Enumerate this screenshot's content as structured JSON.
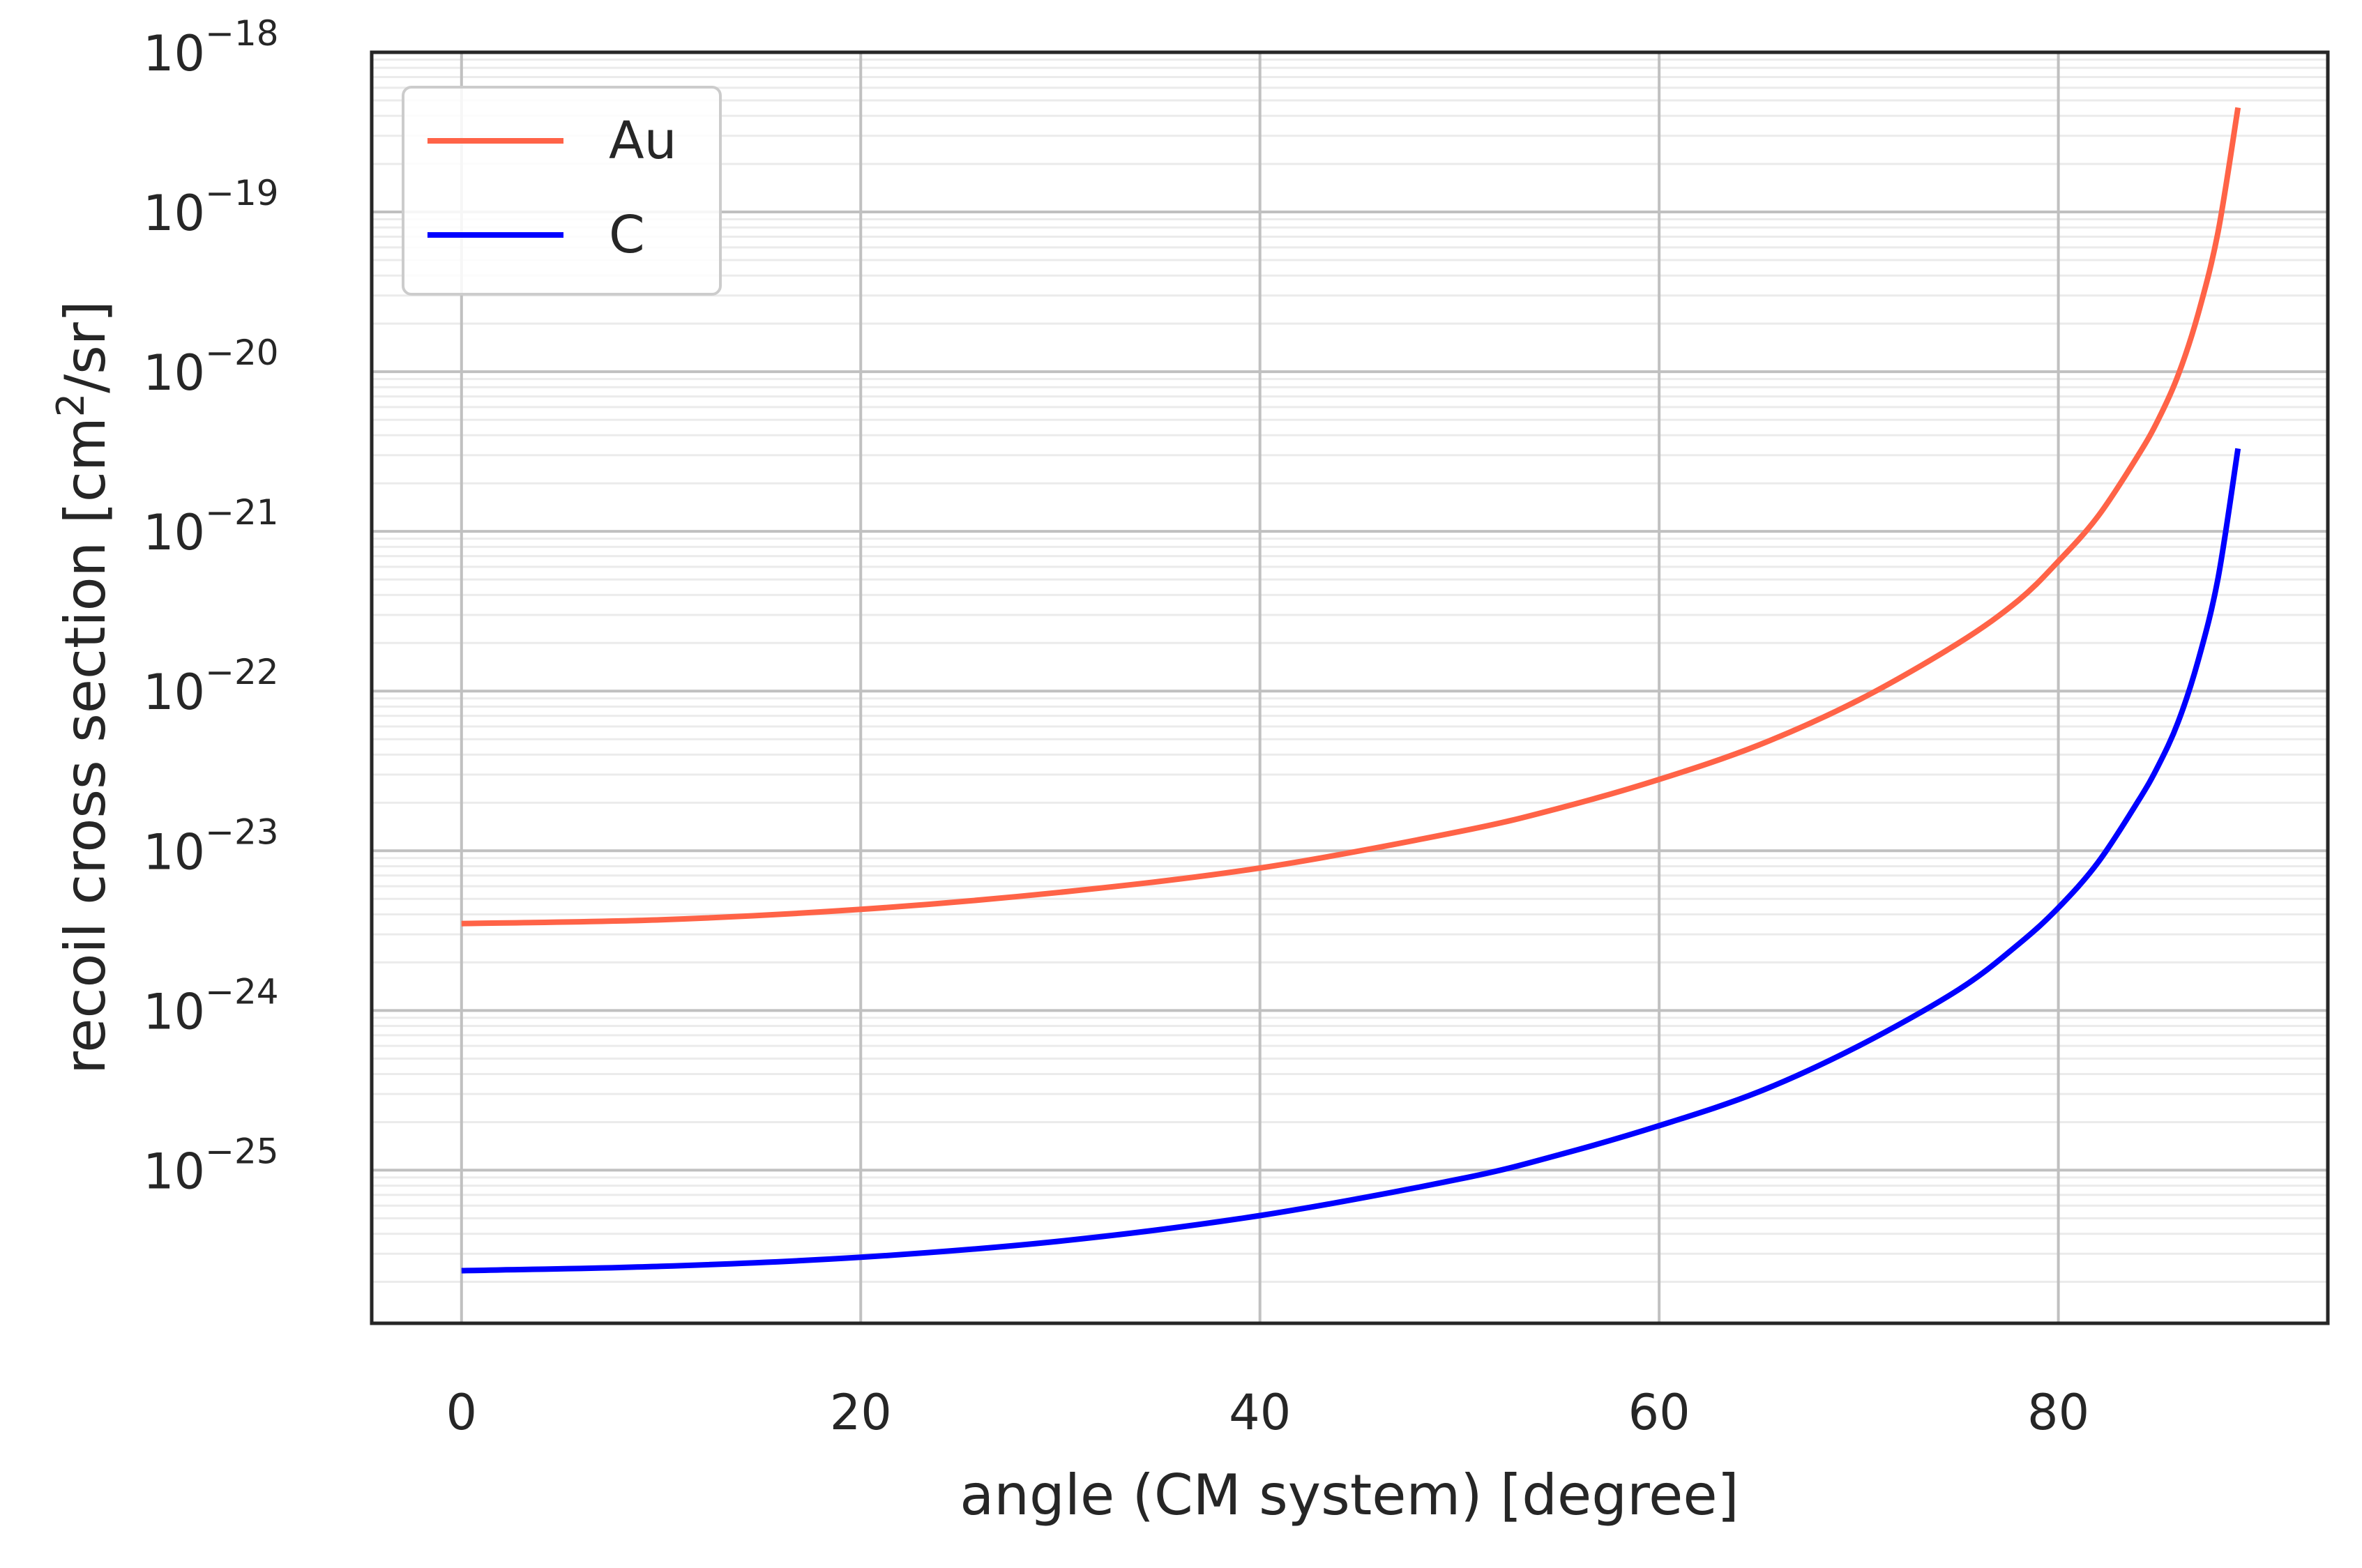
{
  "chart_data": {
    "type": "line",
    "title": "",
    "xlabel": "angle (CM system) [degree]",
    "ylabel_main": "recoil cross section [cm",
    "ylabel_sup": "2",
    "ylabel_tail": "/sr]",
    "x_scale": "linear",
    "y_scale": "log",
    "xlim": [
      -4.5,
      93.5
    ],
    "ylim": [
      1.1e-26,
      1e-18
    ],
    "x_ticks": [
      0,
      20,
      40,
      60,
      80
    ],
    "x_tick_labels": [
      "0",
      "20",
      "40",
      "60",
      "80"
    ],
    "y_ticks": [
      {
        "value": 1e-18,
        "base": "10",
        "exp": "−18"
      },
      {
        "value": 1e-19,
        "base": "10",
        "exp": "−19"
      },
      {
        "value": 1e-20,
        "base": "10",
        "exp": "−20"
      },
      {
        "value": 1e-21,
        "base": "10",
        "exp": "−21"
      },
      {
        "value": 1e-22,
        "base": "10",
        "exp": "−22"
      },
      {
        "value": 1e-23,
        "base": "10",
        "exp": "−23"
      },
      {
        "value": 1e-24,
        "base": "10",
        "exp": "−24"
      },
      {
        "value": 1e-25,
        "base": "10",
        "exp": "−25"
      }
    ],
    "grid": true,
    "minor_grid": true,
    "legend_position": "upper-left",
    "series": [
      {
        "name": "Au",
        "color": "#ff6347",
        "x": [
          0,
          10,
          20,
          30,
          40,
          50,
          55,
          60,
          65,
          70,
          75,
          78,
          80,
          82,
          84,
          85,
          86,
          87,
          88,
          89
        ],
        "y": [
          3.5e-24,
          3.7e-24,
          4.3e-24,
          5.5e-24,
          7.8e-24,
          1.32e-23,
          1.85e-23,
          2.8e-23,
          4.6e-23,
          8.8e-23,
          2e-22,
          3.7e-22,
          6.5e-22,
          1.25e-21,
          3e-21,
          5e-21,
          9.5e-21,
          2.3e-20,
          7.5e-20,
          4.5e-19
        ]
      },
      {
        "name": "C",
        "color": "#0000ff",
        "x": [
          0,
          10,
          20,
          30,
          40,
          50,
          55,
          60,
          65,
          70,
          75,
          78,
          80,
          82,
          84,
          85,
          86,
          87,
          88,
          89
        ],
        "y": [
          2.35e-26,
          2.5e-26,
          2.85e-26,
          3.6e-26,
          5.2e-26,
          8.8e-26,
          1.25e-25,
          1.9e-25,
          3.1e-25,
          6e-25,
          1.35e-24,
          2.6e-24,
          4.4e-24,
          8.5e-24,
          2.05e-23,
          3.4e-23,
          6.4e-23,
          1.55e-22,
          5.1e-22,
          3.3e-21
        ]
      }
    ]
  }
}
